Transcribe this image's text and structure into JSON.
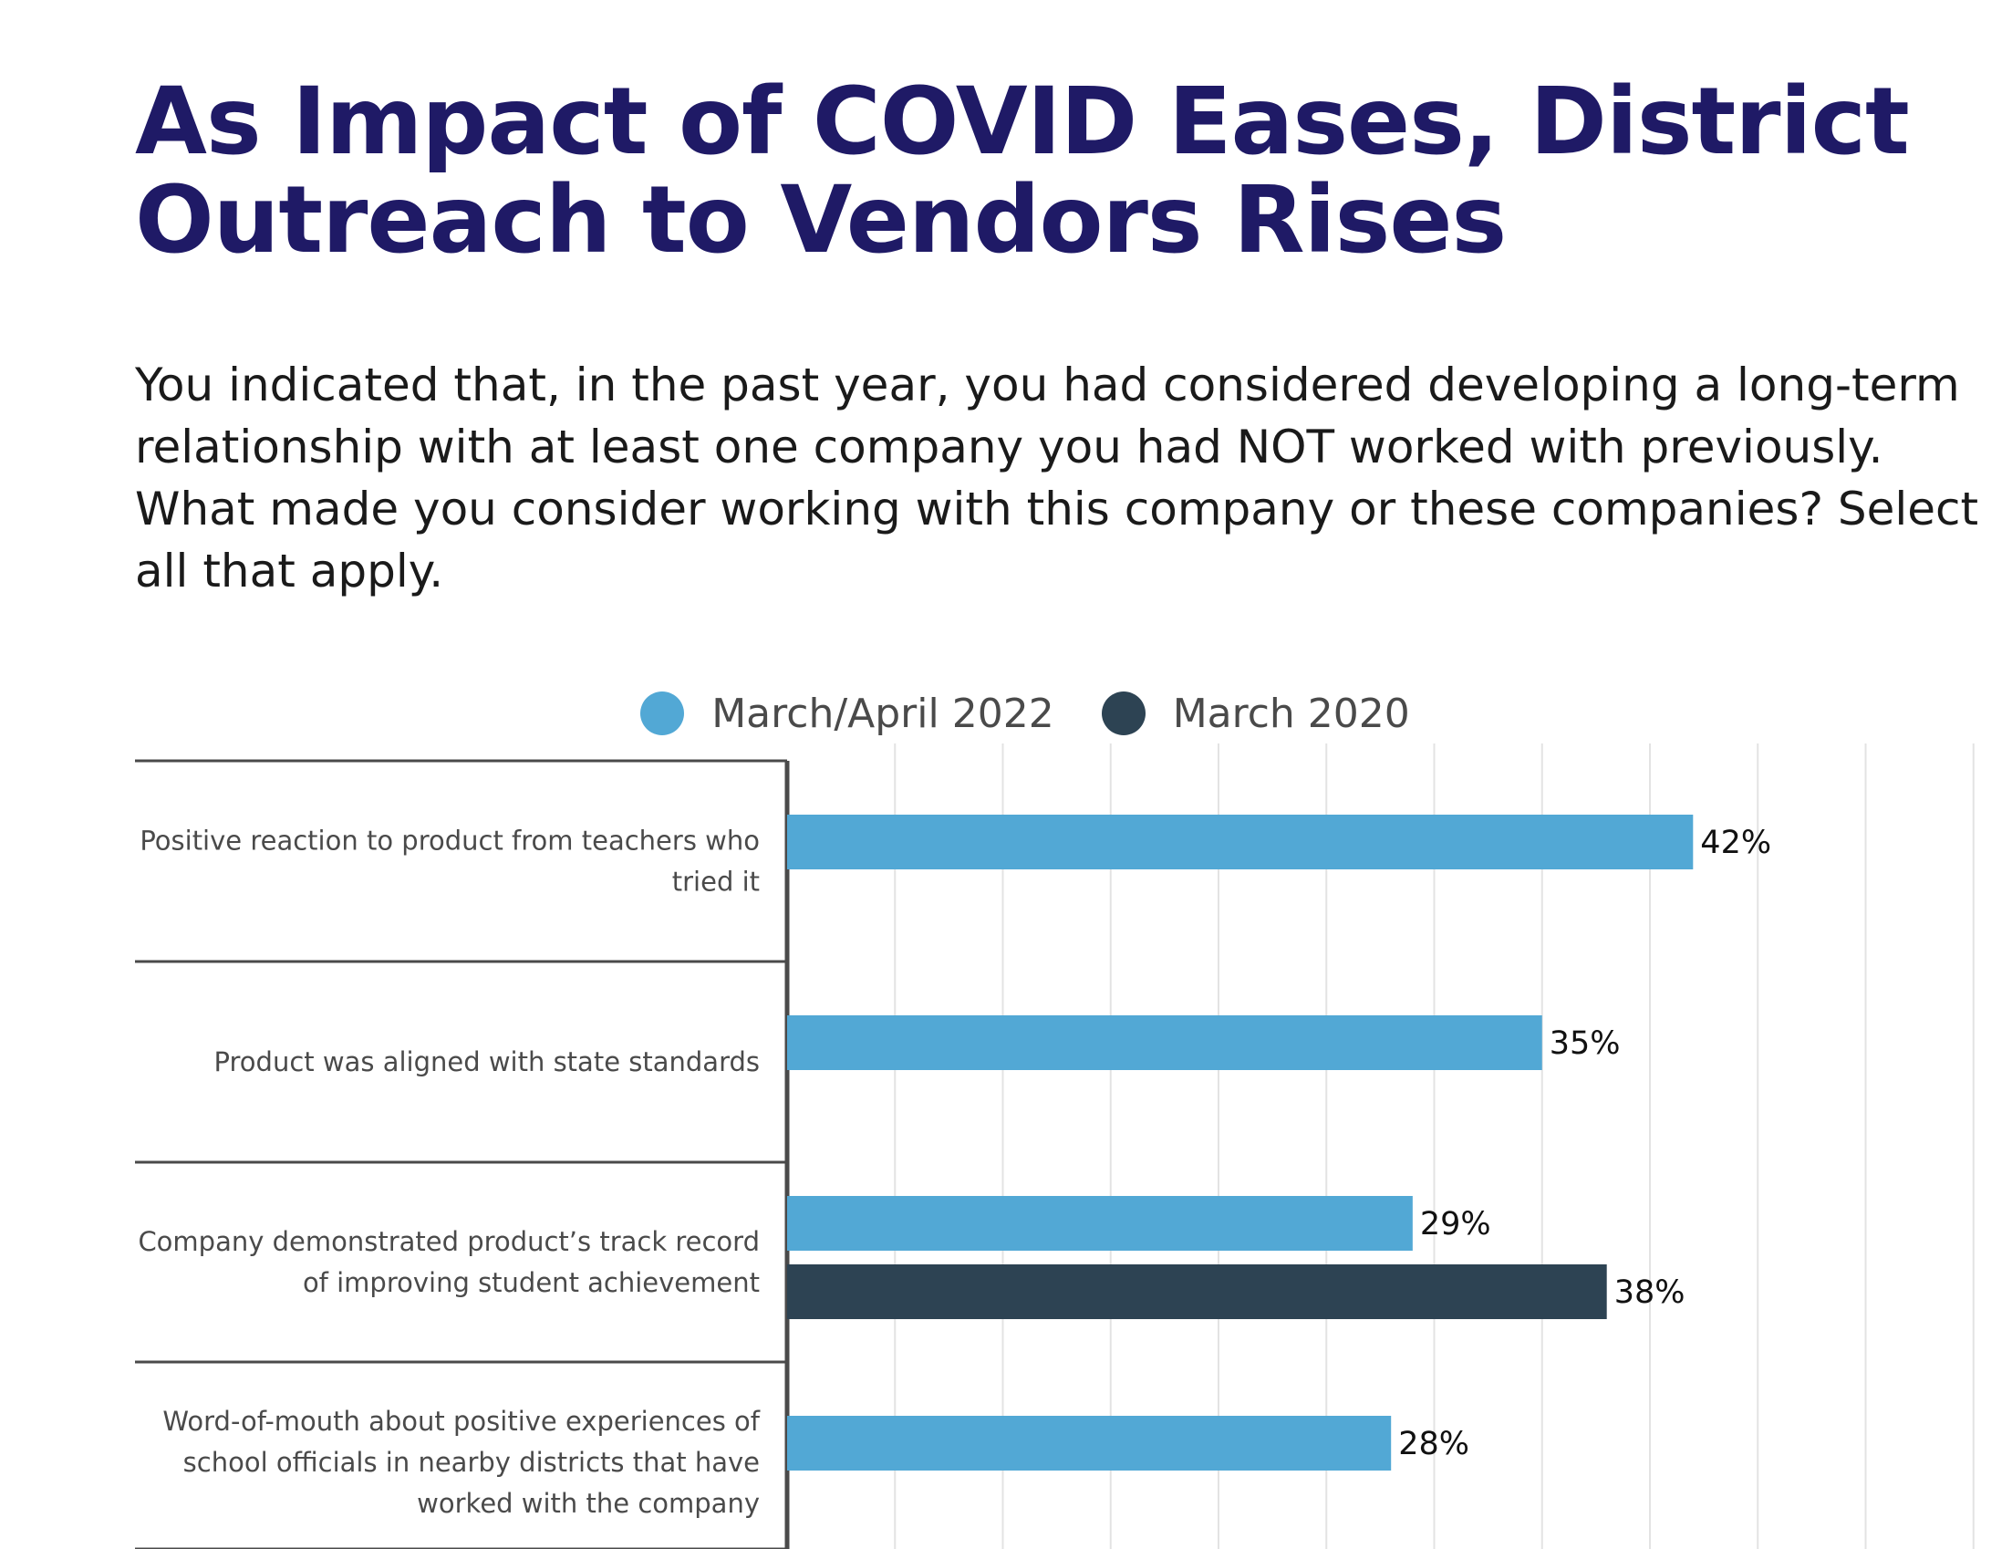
{
  "title": "As Impact of COVID Eases, District Outreach to Vendors Rises",
  "subtitle": "You indicated that, in the past year, you had considered developing a long-term relationship with at least one company you had NOT worked with previously. What made you consider working with this company or these companies? Select all that apply.",
  "colors": {
    "title": "#1f1a66",
    "series_2022": "#52a8d5",
    "series_2020": "#2d4353",
    "gridline": "#e3e3e3",
    "divider": "#4a4a4a"
  },
  "legend": [
    {
      "label": "March/April 2022",
      "color": "#52a8d5"
    },
    {
      "label": "March 2020",
      "color": "#2d4353"
    }
  ],
  "chart_data": {
    "type": "bar",
    "orientation": "horizontal",
    "categories": [
      [
        "Positive reaction to product from teachers who",
        "tried it"
      ],
      [
        "Product was aligned with state standards"
      ],
      [
        "Company demonstrated product’s track record",
        "of improving student achievement"
      ],
      [
        "Word-of-mouth about positive experiences of",
        "school officials in nearby districts that have",
        "worked with the company"
      ]
    ],
    "series": [
      {
        "name": "March/April 2022",
        "color": "#52a8d5",
        "values": [
          42,
          35,
          29,
          28
        ]
      },
      {
        "name": "March 2020",
        "color": "#2d4353",
        "values": [
          null,
          null,
          38,
          null
        ]
      }
    ],
    "value_suffix": "%",
    "xlim": [
      0,
      55
    ],
    "grid": true,
    "legend_position": "top-center"
  }
}
